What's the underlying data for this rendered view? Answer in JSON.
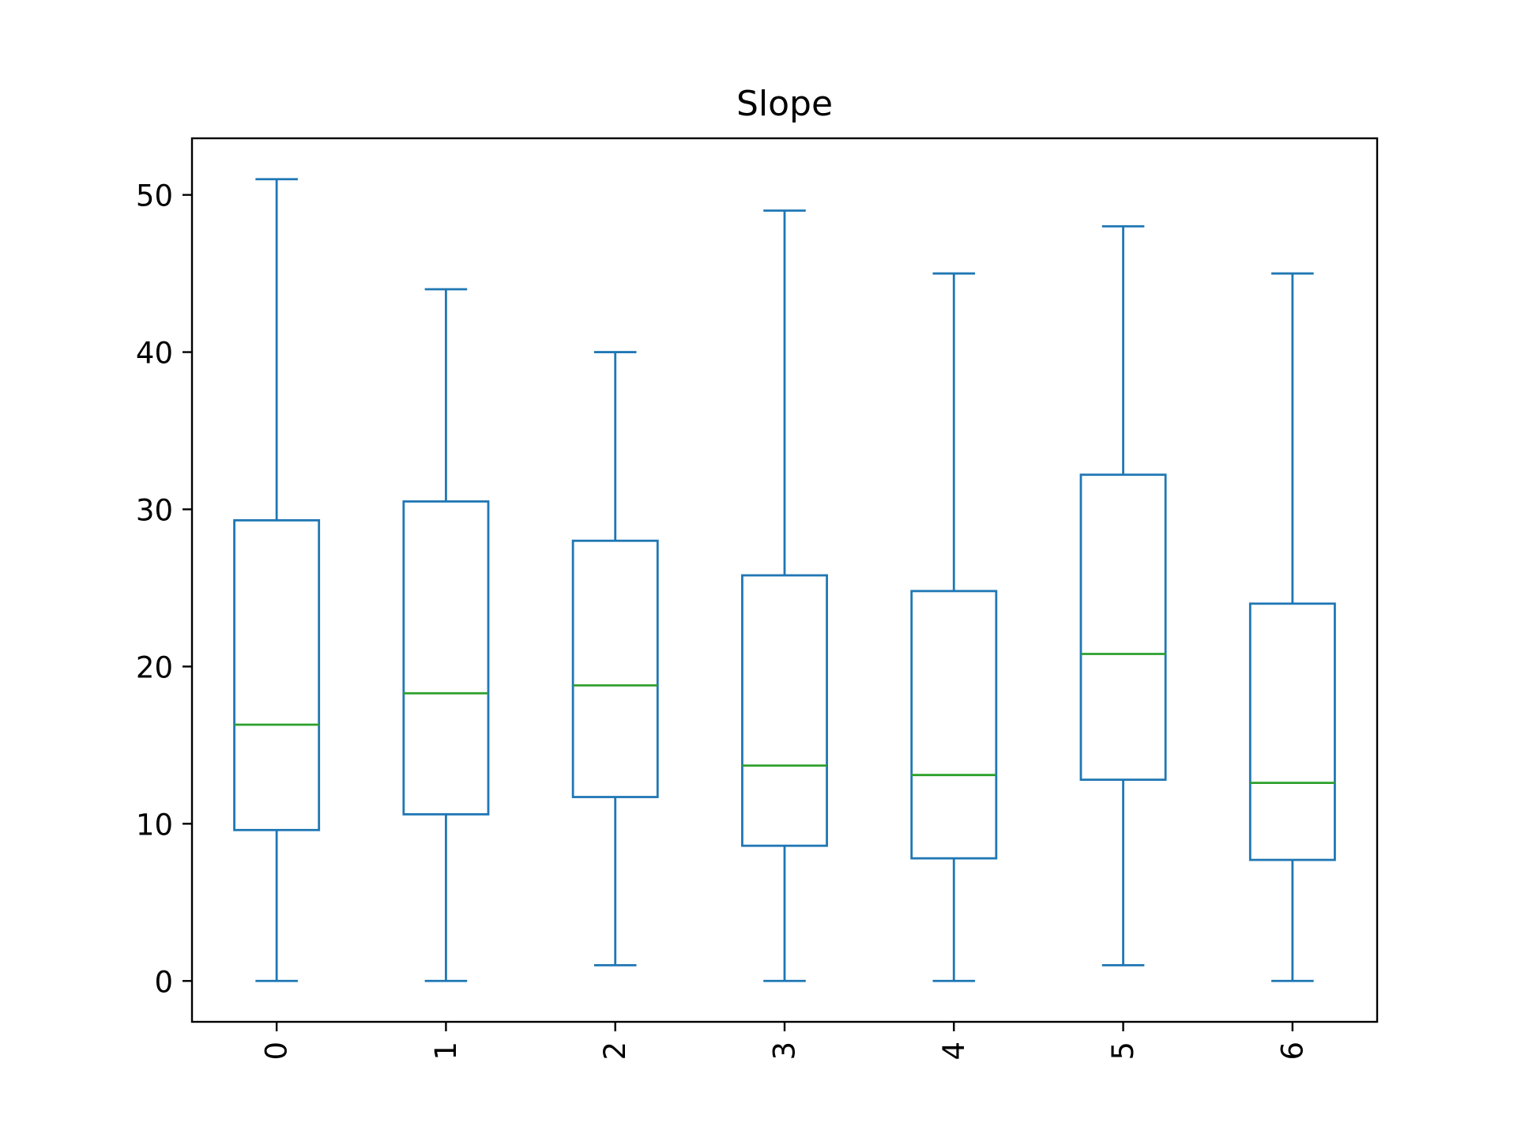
{
  "chart_data": {
    "type": "box",
    "title": "Slope",
    "xlabel": "",
    "ylabel": "",
    "categories": [
      "0",
      "1",
      "2",
      "3",
      "4",
      "5",
      "6"
    ],
    "boxes": [
      {
        "whisker_low": 0,
        "q1": 9.6,
        "median": 16.3,
        "q3": 29.3,
        "whisker_high": 51
      },
      {
        "whisker_low": 0,
        "q1": 10.6,
        "median": 18.3,
        "q3": 30.5,
        "whisker_high": 44
      },
      {
        "whisker_low": 1,
        "q1": 11.7,
        "median": 18.8,
        "q3": 28.0,
        "whisker_high": 40
      },
      {
        "whisker_low": 0,
        "q1": 8.6,
        "median": 13.7,
        "q3": 25.8,
        "whisker_high": 49
      },
      {
        "whisker_low": 0,
        "q1": 7.8,
        "median": 13.1,
        "q3": 24.8,
        "whisker_high": 45
      },
      {
        "whisker_low": 1,
        "q1": 12.8,
        "median": 20.8,
        "q3": 32.2,
        "whisker_high": 48
      },
      {
        "whisker_low": 0,
        "q1": 7.7,
        "median": 12.6,
        "q3": 24.0,
        "whisker_high": 45
      }
    ],
    "yticks": [
      0,
      10,
      20,
      30,
      40,
      50
    ],
    "ylim": [
      -2.6,
      53.6
    ],
    "xtick_rotation": 90,
    "grid": false,
    "legend": "none",
    "colors": {
      "box": "#1f77b4",
      "median": "#2ca02c",
      "axis": "#000000"
    }
  }
}
